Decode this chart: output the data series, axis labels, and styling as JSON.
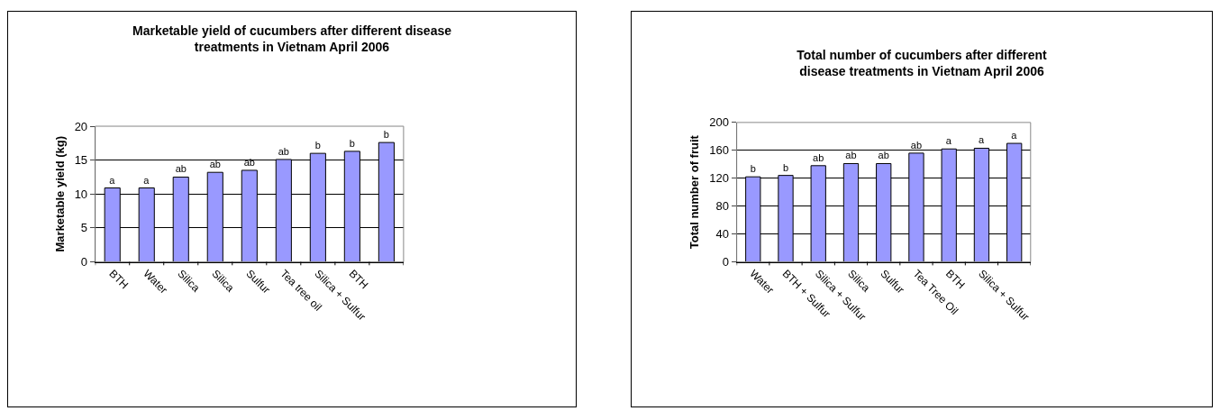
{
  "chart_data": [
    {
      "type": "bar",
      "title": "Marketable yield of cucumbers after different disease treatments in Vietnam April 2006",
      "ylabel": "Marketable yield (kg)",
      "categories": [
        "BTH",
        "Water",
        "Silica",
        "Silica",
        "Sulfur",
        "Tea tree oil",
        "Silica + Sulfur",
        "BTH",
        null
      ],
      "values": [
        10.9,
        10.9,
        12.5,
        13.2,
        13.5,
        15.1,
        16.0,
        16.3,
        17.6
      ],
      "value_labels": [
        "a",
        "a",
        "ab",
        "ab",
        "ab",
        "ab",
        "b",
        "b",
        "b"
      ],
      "color": "#9999ff",
      "ylim": [
        0,
        20
      ],
      "yticks": [
        0,
        5,
        10,
        15,
        20
      ],
      "grid": "y",
      "legend": false
    },
    {
      "type": "bar",
      "title": "Total number of cucumbers after different disease treatments in Vietnam April 2006",
      "ylabel": "Total number of fruit",
      "categories": [
        "Water",
        "BTH + Sulfur",
        "Silica + Sulfur",
        "Silica",
        "Sulfur",
        "Tea Tree Oil",
        "BTH",
        "Silica + Sulfur",
        null
      ],
      "values": [
        122,
        124,
        138,
        141,
        141,
        156,
        162,
        163,
        170
      ],
      "value_labels": [
        "b",
        "b",
        "ab",
        "ab",
        "ab",
        "ab",
        "a",
        "a",
        "a"
      ],
      "color": "#9999ff",
      "ylim": [
        0,
        200
      ],
      "yticks": [
        0,
        40,
        80,
        120,
        160,
        200
      ],
      "grid": "y",
      "legend": false
    }
  ]
}
